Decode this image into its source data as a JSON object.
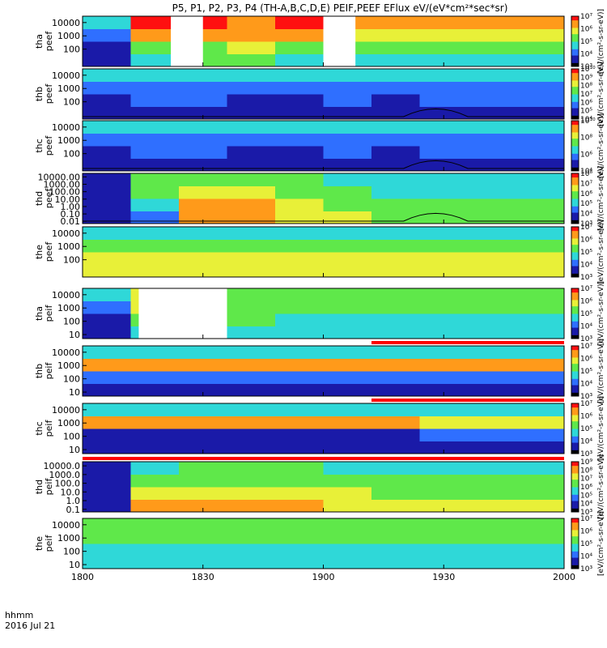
{
  "title": "P5, P1, P2, P3, P4 (TH-A,B,C,D,E) PEIF,PEEF EFlux eV/(eV*cm²*sec*sr)",
  "footer": {
    "unit_label": "hhmm",
    "date_label": "2016 Jul 21"
  },
  "colors": {
    "fill_gap": "#ffffff",
    "flag_bar": "#ff0000",
    "frame": "#000000"
  },
  "chart_data": [
    {
      "type": "heatmap",
      "name": "tha peef",
      "ylabel": [
        "tha",
        "peef"
      ],
      "yscale": "log",
      "yticks": [
        "100",
        "1000",
        "10000"
      ],
      "ylim": [
        5,
        30000
      ],
      "xticks": [
        "1800",
        "1830",
        "1900",
        "1930",
        "2000"
      ],
      "xlim": [
        0,
        120
      ],
      "has_curve": false,
      "flag_bar": null,
      "colorbar": {
        "ticks": [
          "10³",
          "10⁴",
          "10⁵",
          "10⁶",
          "10⁷"
        ],
        "label": "[eV/(cm²-s-sr-eV)]"
      },
      "gaps": [
        [
          22,
          30
        ],
        [
          60,
          68
        ]
      ],
      "columns": [
        [
          1,
          1,
          2,
          3
        ],
        [
          3,
          4,
          6,
          7
        ],
        [
          4,
          4,
          6,
          7
        ],
        [
          4,
          5,
          6,
          6
        ],
        [
          3,
          4,
          6,
          7
        ],
        [
          3,
          4,
          5,
          6
        ],
        [
          3,
          4,
          5,
          6
        ],
        [
          3,
          4,
          5,
          6
        ],
        [
          3,
          4,
          5,
          6
        ],
        [
          3,
          4,
          5,
          6
        ]
      ]
    },
    {
      "type": "heatmap",
      "name": "thb peef",
      "ylabel": [
        "thb",
        "peef"
      ],
      "yscale": "log",
      "yticks": [
        "100",
        "1000",
        "10000"
      ],
      "ylim": [
        5,
        30000
      ],
      "xticks": [
        "1800",
        "1830",
        "1900",
        "1930",
        "2000"
      ],
      "xlim": [
        0,
        120
      ],
      "has_curve": true,
      "flag_bar": null,
      "colorbar": {
        "ticks": [
          "10⁴",
          "10⁵",
          "10⁶",
          "10⁷",
          "10⁸",
          "10⁹",
          "10¹⁰"
        ],
        "label": "[eV/(cm²-s-sr-eV)]"
      },
      "gaps": [],
      "columns": [
        [
          1,
          1,
          2,
          3
        ],
        [
          1,
          2,
          2,
          3
        ],
        [
          1,
          2,
          2,
          3
        ],
        [
          1,
          1,
          2,
          3
        ],
        [
          1,
          1,
          2,
          3
        ],
        [
          1,
          2,
          2,
          3
        ],
        [
          1,
          1,
          2,
          3
        ],
        [
          1,
          2,
          2,
          3
        ],
        [
          1,
          2,
          2,
          3
        ],
        [
          1,
          2,
          2,
          3
        ]
      ]
    },
    {
      "type": "heatmap",
      "name": "thc peef",
      "ylabel": [
        "thc",
        "peef"
      ],
      "yscale": "log",
      "yticks": [
        "100",
        "1000",
        "10000"
      ],
      "ylim": [
        5,
        30000
      ],
      "xticks": [
        "1800",
        "1830",
        "1900",
        "1930",
        "2000"
      ],
      "xlim": [
        0,
        120
      ],
      "has_curve": true,
      "flag_bar": null,
      "colorbar": {
        "ticks": [
          "10⁴",
          "10⁶",
          "10⁸",
          "10¹⁰"
        ],
        "label": "[eV/(cm²-s-sr-eV)]"
      },
      "gaps": [],
      "columns": [
        [
          1,
          1,
          2,
          3
        ],
        [
          1,
          2,
          2,
          3
        ],
        [
          1,
          2,
          2,
          3
        ],
        [
          1,
          1,
          2,
          3
        ],
        [
          1,
          1,
          2,
          3
        ],
        [
          1,
          2,
          2,
          3
        ],
        [
          1,
          1,
          2,
          3
        ],
        [
          1,
          2,
          2,
          3
        ],
        [
          1,
          2,
          2,
          3
        ],
        [
          1,
          2,
          2,
          3
        ]
      ]
    },
    {
      "type": "heatmap",
      "name": "thd peef",
      "ylabel": [
        "thd",
        "peef"
      ],
      "yscale": "log",
      "yticks": [
        "0.01",
        "0.10",
        "1.00",
        "10.00",
        "100.00",
        "1000.00",
        "10000.00"
      ],
      "ylim": [
        0.005,
        30000
      ],
      "xticks": [
        "1800",
        "1830",
        "1900",
        "1930",
        "2000"
      ],
      "xlim": [
        0,
        120
      ],
      "has_curve": true,
      "flag_bar": null,
      "colorbar": {
        "ticks": [
          "10³",
          "10⁴",
          "10⁵",
          "10⁶",
          "10⁷",
          "10⁸"
        ],
        "label": "[eV/(cm²-s-sr-eV)]"
      },
      "gaps": [],
      "columns": [
        [
          1,
          1,
          1,
          1
        ],
        [
          2,
          3,
          4,
          4
        ],
        [
          6,
          6,
          5,
          4
        ],
        [
          6,
          6,
          5,
          4
        ],
        [
          5,
          5,
          4,
          4
        ],
        [
          5,
          4,
          4,
          3
        ],
        [
          4,
          4,
          3,
          3
        ],
        [
          4,
          4,
          3,
          3
        ],
        [
          4,
          4,
          3,
          3
        ],
        [
          4,
          4,
          3,
          3
        ]
      ]
    },
    {
      "type": "heatmap",
      "name": "the peef",
      "ylabel": [
        "the",
        "peef"
      ],
      "yscale": "log",
      "yticks": [
        "100",
        "1000",
        "10000"
      ],
      "ylim": [
        5,
        30000
      ],
      "xticks": [
        "1800",
        "1830",
        "1900",
        "1930",
        "2000"
      ],
      "xlim": [
        0,
        120
      ],
      "has_curve": false,
      "flag_bar": null,
      "colorbar": {
        "ticks": [
          "10³",
          "10⁴",
          "10⁵",
          "10⁶",
          "10⁷"
        ],
        "label": "[eV/(cm²-s-sr-eV)]"
      },
      "gaps": [],
      "columns": [
        [
          5,
          5,
          4,
          3
        ],
        [
          5,
          5,
          4,
          3
        ],
        [
          5,
          5,
          4,
          3
        ],
        [
          5,
          5,
          4,
          3
        ],
        [
          5,
          5,
          4,
          3
        ],
        [
          5,
          5,
          4,
          3
        ],
        [
          5,
          5,
          4,
          3
        ],
        [
          5,
          5,
          4,
          3
        ],
        [
          5,
          5,
          4,
          3
        ],
        [
          5,
          5,
          4,
          3
        ]
      ]
    },
    {
      "type": "heatmap",
      "name": "tha peif",
      "ylabel": [
        "tha",
        "peif"
      ],
      "yscale": "log",
      "yticks": [
        "10",
        "100",
        "1000",
        "10000"
      ],
      "ylim": [
        5,
        30000
      ],
      "xticks": [
        "1800",
        "1830",
        "1900",
        "1930",
        "2000"
      ],
      "xlim": [
        0,
        120
      ],
      "has_curve": false,
      "flag_bar": null,
      "colorbar": {
        "ticks": [
          "10³",
          "10⁴",
          "10⁵",
          "10⁶",
          "10⁷"
        ],
        "label": "[eV/(cm²-s-sr-eV)]"
      },
      "gaps": [
        [
          14,
          36
        ]
      ],
      "columns": [
        [
          1,
          1,
          2,
          3
        ],
        [
          3,
          4,
          5,
          5
        ],
        [
          4,
          4,
          5,
          5
        ],
        [
          3,
          4,
          4,
          4
        ],
        [
          3,
          3,
          4,
          4
        ],
        [
          3,
          3,
          4,
          4
        ],
        [
          3,
          3,
          4,
          4
        ],
        [
          3,
          3,
          4,
          4
        ],
        [
          3,
          3,
          4,
          4
        ],
        [
          3,
          3,
          4,
          4
        ]
      ]
    },
    {
      "type": "heatmap",
      "name": "thb peif",
      "ylabel": [
        "thb",
        "peif"
      ],
      "yscale": "log",
      "yticks": [
        "10",
        "100",
        "1000",
        "10000"
      ],
      "ylim": [
        5,
        30000
      ],
      "xticks": [
        "1800",
        "1830",
        "1900",
        "1930",
        "2000"
      ],
      "xlim": [
        0,
        120
      ],
      "has_curve": false,
      "flag_bar": {
        "start": 72,
        "end": 120
      },
      "colorbar": {
        "ticks": [
          "10³",
          "10⁴",
          "10⁵",
          "10⁶",
          "10⁷"
        ],
        "label": "[eV/(cm²-s-sr-eV)]"
      },
      "gaps": [],
      "columns": [
        [
          1,
          2,
          6,
          3
        ],
        [
          1,
          2,
          6,
          3
        ],
        [
          1,
          2,
          6,
          3
        ],
        [
          1,
          2,
          6,
          3
        ],
        [
          1,
          2,
          6,
          3
        ],
        [
          1,
          2,
          6,
          3
        ],
        [
          1,
          2,
          6,
          3
        ],
        [
          1,
          2,
          6,
          3
        ],
        [
          1,
          2,
          6,
          3
        ],
        [
          1,
          2,
          6,
          3
        ]
      ]
    },
    {
      "type": "heatmap",
      "name": "thc peif",
      "ylabel": [
        "thc",
        "peif"
      ],
      "yscale": "log",
      "yticks": [
        "10",
        "100",
        "1000",
        "10000"
      ],
      "ylim": [
        5,
        30000
      ],
      "xticks": [
        "1800",
        "1830",
        "1900",
        "1930",
        "2000"
      ],
      "xlim": [
        0,
        120
      ],
      "has_curve": false,
      "flag_bar": {
        "start": 72,
        "end": 120
      },
      "colorbar": {
        "ticks": [
          "10³",
          "10⁴",
          "10⁵",
          "10⁶",
          "10⁷"
        ],
        "label": "[eV/(cm²-s-sr-eV)]"
      },
      "gaps": [],
      "columns": [
        [
          1,
          1,
          6,
          3
        ],
        [
          1,
          1,
          6,
          3
        ],
        [
          1,
          1,
          6,
          3
        ],
        [
          1,
          1,
          6,
          3
        ],
        [
          1,
          1,
          6,
          3
        ],
        [
          1,
          1,
          6,
          3
        ],
        [
          1,
          1,
          6,
          3
        ],
        [
          1,
          2,
          5,
          3
        ],
        [
          1,
          2,
          5,
          3
        ],
        [
          1,
          2,
          5,
          3
        ]
      ]
    },
    {
      "type": "heatmap",
      "name": "thd peif",
      "ylabel": [
        "thd",
        "peif"
      ],
      "yscale": "log",
      "yticks": [
        "0.1",
        "1.0",
        "10.0",
        "100.0",
        "1000.0",
        "10000.0"
      ],
      "ylim": [
        0.05,
        30000
      ],
      "xticks": [
        "1800",
        "1830",
        "1900",
        "1930",
        "2000"
      ],
      "xlim": [
        0,
        120
      ],
      "has_curve": false,
      "flag_bar": {
        "start": 0,
        "end": 120
      },
      "colorbar": {
        "ticks": [
          "10³",
          "10⁴",
          "10⁵",
          "10⁶",
          "10⁷",
          "10⁸",
          "10⁹"
        ],
        "label": "[eV/(cm²-s-sr-eV)]"
      },
      "gaps": [],
      "columns": [
        [
          1,
          1,
          1,
          1
        ],
        [
          6,
          5,
          4,
          3
        ],
        [
          6,
          5,
          4,
          4
        ],
        [
          6,
          5,
          4,
          4
        ],
        [
          6,
          5,
          4,
          4
        ],
        [
          5,
          5,
          4,
          3
        ],
        [
          5,
          4,
          4,
          3
        ],
        [
          5,
          4,
          4,
          3
        ],
        [
          5,
          4,
          4,
          3
        ],
        [
          5,
          4,
          4,
          3
        ]
      ]
    },
    {
      "type": "heatmap",
      "name": "the peif",
      "ylabel": [
        "the",
        "peif"
      ],
      "yscale": "log",
      "yticks": [
        "10",
        "100",
        "1000",
        "10000"
      ],
      "ylim": [
        5,
        30000
      ],
      "xticks": [
        "1800",
        "1830",
        "1900",
        "1930",
        "2000"
      ],
      "xlim": [
        0,
        120
      ],
      "has_curve": false,
      "flag_bar": null,
      "colorbar": {
        "ticks": [
          "10³",
          "10⁴",
          "10⁵",
          "10⁶",
          "10⁷"
        ],
        "label": "[eV/(cm²-s-sr-eV)]"
      },
      "gaps": [],
      "columns": [
        [
          3,
          3,
          4,
          4
        ],
        [
          3,
          3,
          4,
          4
        ],
        [
          3,
          3,
          4,
          4
        ],
        [
          3,
          3,
          4,
          4
        ],
        [
          3,
          3,
          4,
          4
        ],
        [
          3,
          3,
          4,
          4
        ],
        [
          3,
          3,
          4,
          4
        ],
        [
          3,
          3,
          4,
          4
        ],
        [
          3,
          3,
          4,
          4
        ],
        [
          3,
          3,
          4,
          4
        ]
      ]
    }
  ]
}
